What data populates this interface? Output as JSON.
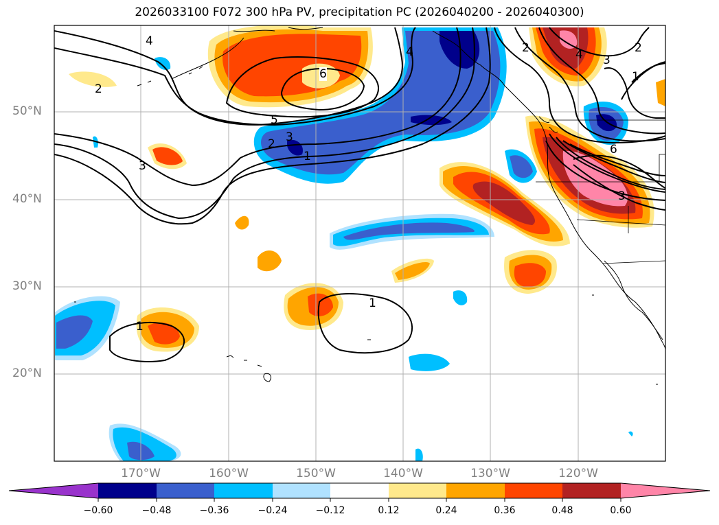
{
  "title": "2026033100 F072 300 hPa PV, precipitation PC (2026040200 - 2026040300)",
  "lat_labels": [
    "50°N",
    "40°N",
    "30°N",
    "20°N"
  ],
  "lon_labels": [
    "170°W",
    "160°W",
    "150°W",
    "140°W",
    "130°W",
    "120°W"
  ],
  "colorbar": {
    "ticks": [
      "−0.60",
      "−0.48",
      "−0.36",
      "−0.24",
      "−0.12",
      "0.12",
      "0.24",
      "0.36",
      "0.48",
      "0.60"
    ],
    "colors": [
      "#9933cc",
      "#00008b",
      "#3a5fcd",
      "#00bfff",
      "#b0e2ff",
      "#ffffff",
      "#ffe98c",
      "#ffa500",
      "#ff4500",
      "#b22222",
      "#ff85a8"
    ]
  },
  "contour_labels": [
    "4",
    "2",
    "6",
    "5",
    "3",
    "2",
    "1",
    "3",
    "4",
    "2",
    "3",
    "1",
    "2",
    "4",
    "6",
    "3",
    "1",
    "1"
  ]
}
